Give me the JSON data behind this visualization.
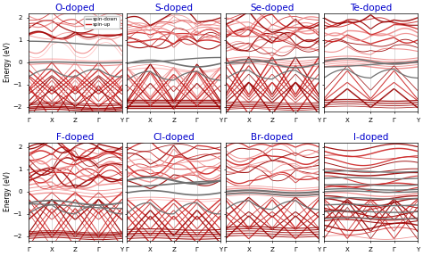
{
  "titles": [
    "O-doped",
    "S-doped",
    "Se-doped",
    "Te-doped",
    "F-doped",
    "Cl-doped",
    "Br-doped",
    "I-doped"
  ],
  "title_color": "#0000cc",
  "title_fontsize": 7.5,
  "xlabel_ticks": [
    "Γ",
    "X",
    "Z",
    "Γ",
    "Y"
  ],
  "ylabel": "Energy (eV)",
  "ylabel_fontsize": 5.5,
  "ylim": [
    -2.2,
    2.2
  ],
  "yticks": [
    -2,
    -1,
    0,
    1,
    2
  ],
  "legend_labels": [
    "spin-down",
    "spin-up"
  ],
  "spin_down_color": "#707070",
  "spin_up_dark": "#990000",
  "spin_up_mid": "#cc2222",
  "spin_up_light": "#ee8888",
  "spin_up_pink": "#ffbbbb",
  "background_color": "#ffffff",
  "nrows": 2,
  "ncols": 4,
  "num_kpoints": 120
}
